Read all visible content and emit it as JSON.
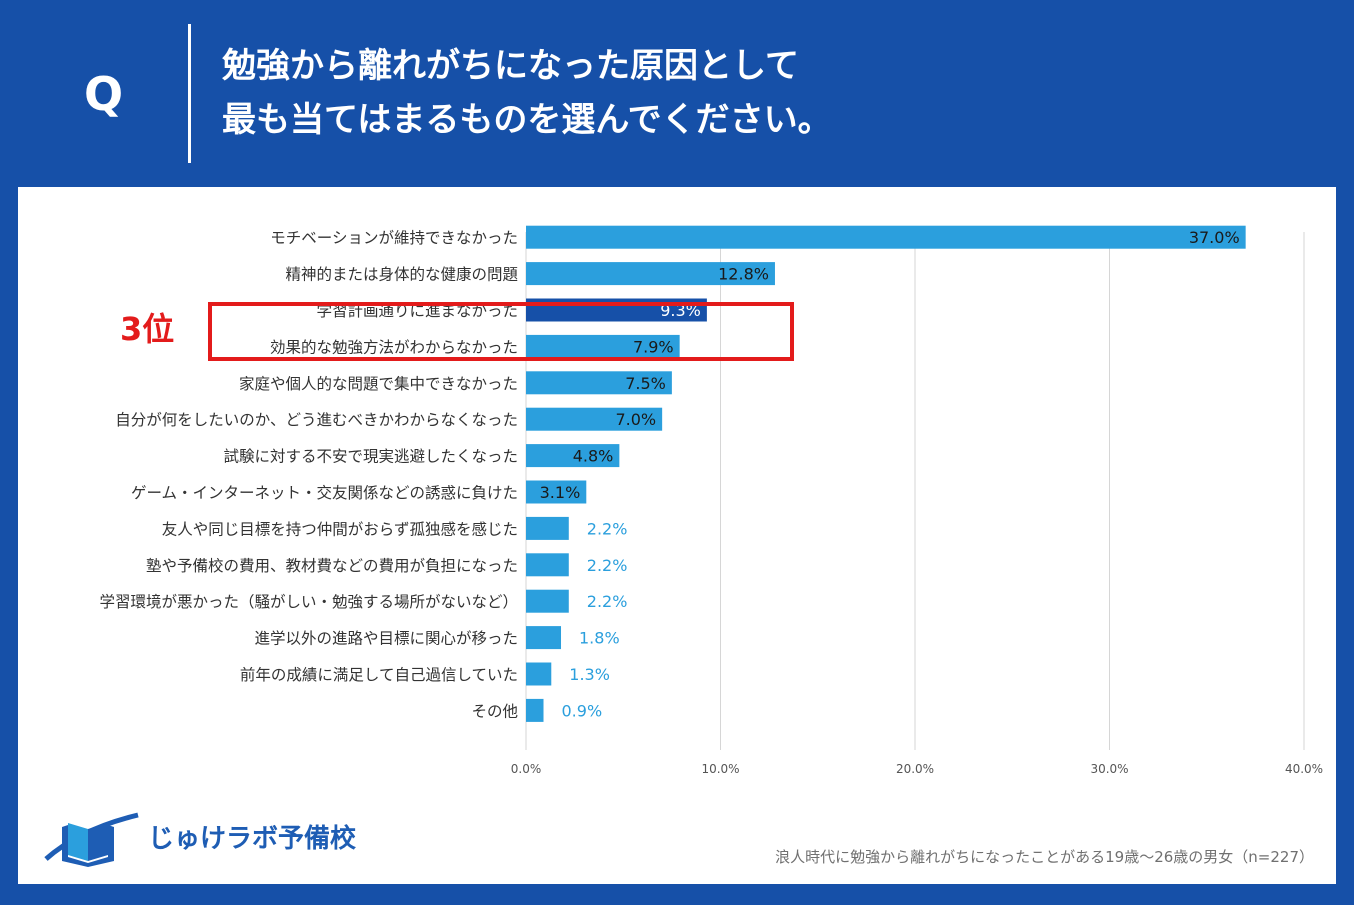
{
  "header": {
    "q_mark": "Q",
    "question_line_1": "勉強から離れがちになった原因として",
    "question_line_2": "最も当てはまるものを選んでください。"
  },
  "rank_label": "3位",
  "footnote": "浪人時代に勉強から離れがちになったことがある19歳～26歳の男女（n=227）",
  "logo": {
    "text": "じゅけラボ予備校",
    "icon": "book-icon"
  },
  "colors": {
    "header_bg": "#1650a8",
    "bar": "#2b9fdd",
    "bar_highlight": "#1650a8",
    "highlight_border": "#e31b1b",
    "outside_label": "#2b9fdd"
  },
  "chart_data": {
    "type": "bar",
    "orientation": "horizontal",
    "categories": [
      "モチベーションが維持できなかった",
      "精神的または身体的な健康の問題",
      "学習計画通りに進まなかった",
      "効果的な勉強方法がわからなかった",
      "家庭や個人的な問題で集中できなかった",
      "自分が何をしたいのか、どう進むべきかわからなくなった",
      "試験に対する不安で現実逃避したくなった",
      "ゲーム・インターネット・交友関係などの誘惑に負けた",
      "友人や同じ目標を持つ仲間がおらず孤独感を感じた",
      "塾や予備校の費用、教材費などの費用が負担になった",
      "学習環境が悪かった（騒がしい・勉強する場所がないなど）",
      "進学以外の進路や目標に関心が移った",
      "前年の成績に満足して自己過信していた",
      "その他"
    ],
    "values": [
      37.0,
      12.8,
      9.3,
      7.9,
      7.5,
      7.0,
      4.8,
      3.1,
      2.2,
      2.2,
      2.2,
      1.8,
      1.3,
      0.9
    ],
    "data_labels": [
      "37.0%",
      "12.8%",
      "9.3%",
      "7.9%",
      "7.5%",
      "7.0%",
      "4.8%",
      "3.1%",
      "2.2%",
      "2.2%",
      "2.2%",
      "1.8%",
      "1.3%",
      "0.9%"
    ],
    "highlight_index": 2,
    "xlim": [
      0,
      40
    ],
    "xticks": [
      0,
      10,
      20,
      30,
      40
    ],
    "xtick_labels": [
      "0.0%",
      "10.0%",
      "20.0%",
      "30.0%",
      "40.0%"
    ],
    "grid": true
  }
}
